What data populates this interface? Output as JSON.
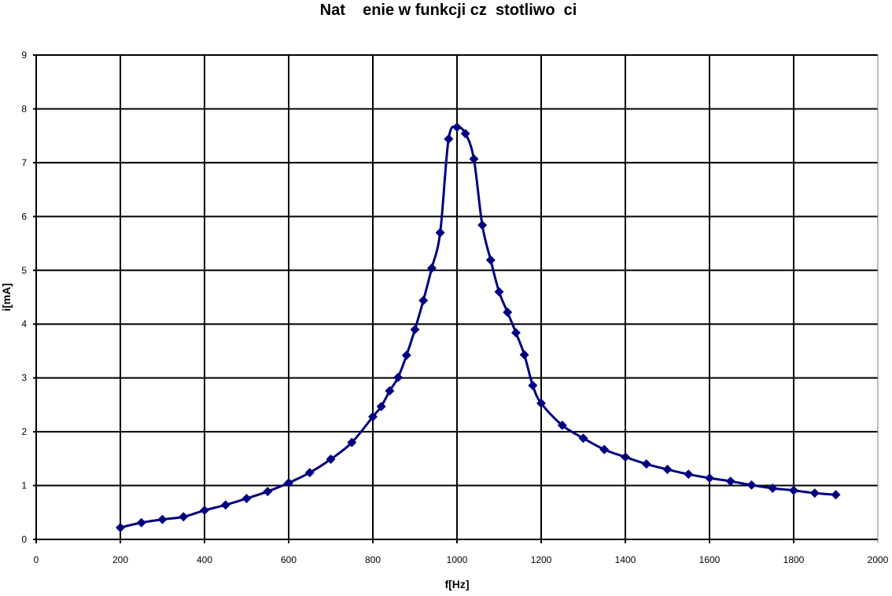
{
  "chart_data": {
    "type": "line",
    "title": "Nat    enie w funkcji cz  stotliwo  ci",
    "xlabel": "f[Hz]",
    "ylabel": "i[mA]",
    "xlim": [
      0,
      2000
    ],
    "ylim": [
      0,
      9
    ],
    "xticks": [
      0,
      200,
      400,
      600,
      800,
      1000,
      1200,
      1400,
      1600,
      1800,
      2000
    ],
    "yticks": [
      0,
      1,
      2,
      3,
      4,
      5,
      6,
      7,
      8,
      9
    ],
    "grid": true,
    "marker": "diamond",
    "smooth": true,
    "colors": {
      "series": "#000080",
      "grid": "#000000",
      "border": "#808080"
    },
    "series": [
      {
        "x": [
          200,
          250,
          300,
          350,
          400,
          450,
          500,
          550,
          600,
          650,
          700,
          750,
          800,
          820,
          840,
          860,
          880,
          900,
          920,
          940,
          960,
          980,
          1000,
          1020,
          1040,
          1060,
          1080,
          1100,
          1120,
          1140,
          1160,
          1180,
          1200,
          1250,
          1300,
          1350,
          1400,
          1450,
          1500,
          1550,
          1600,
          1650,
          1700,
          1750,
          1800,
          1850,
          1900
        ],
        "y": [
          0.22,
          0.31,
          0.37,
          0.42,
          0.54,
          0.64,
          0.76,
          0.89,
          1.05,
          1.24,
          1.49,
          1.8,
          2.28,
          2.47,
          2.76,
          3.01,
          3.42,
          3.9,
          4.44,
          5.04,
          5.7,
          7.44,
          7.66,
          7.54,
          7.07,
          5.84,
          5.19,
          4.6,
          4.22,
          3.84,
          3.43,
          2.86,
          2.53,
          2.12,
          1.88,
          1.67,
          1.53,
          1.4,
          1.3,
          1.21,
          1.14,
          1.08,
          1.01,
          0.95,
          0.91,
          0.86,
          0.83
        ]
      }
    ]
  }
}
